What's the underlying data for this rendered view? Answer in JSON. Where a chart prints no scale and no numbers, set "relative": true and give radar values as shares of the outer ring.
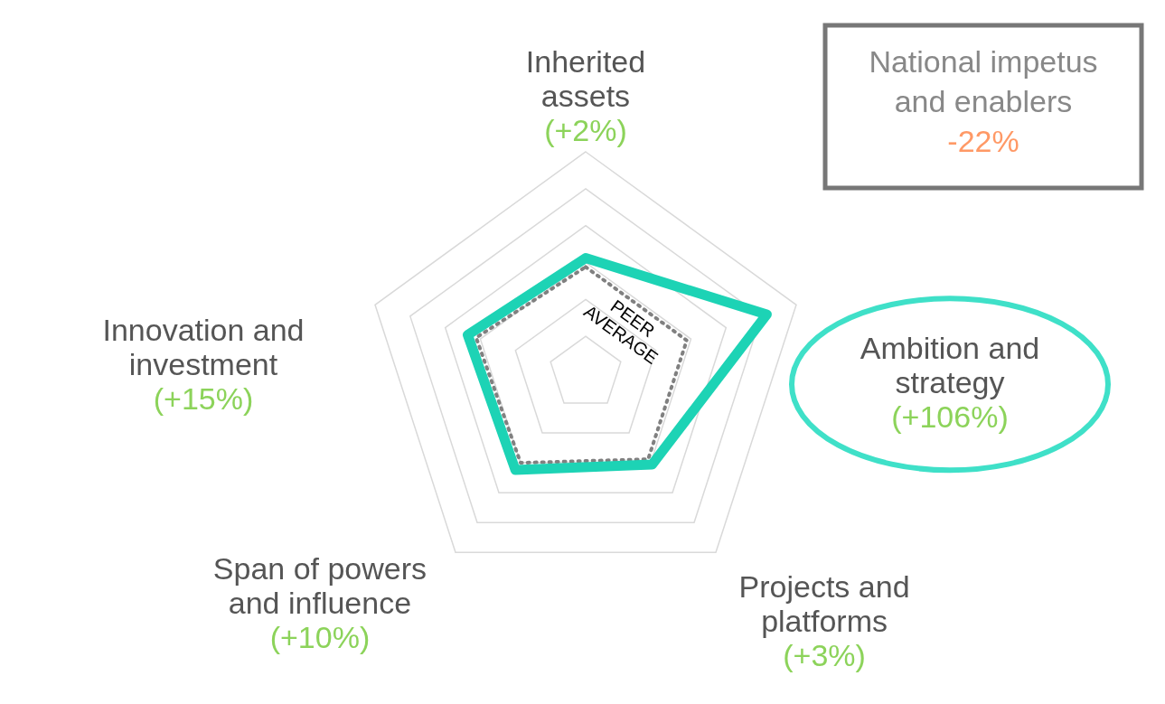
{
  "chart_data": {
    "type": "radar",
    "relative": true,
    "grid": true,
    "categories": [
      "Inherited assets",
      "Ambition and strategy",
      "Projects and platforms",
      "Span of powers and influence",
      "Innovation and investment"
    ],
    "series": [
      {
        "color": "#1dd3b5",
        "values": [
          0.52,
          0.86,
          0.51,
          0.54,
          0.56
        ],
        "line_style": "solid"
      },
      {
        "name": "PEER AVERAGE",
        "color": "#808080",
        "values": [
          0.48,
          0.48,
          0.48,
          0.5,
          0.52
        ],
        "line_style": "dotted"
      }
    ],
    "annotations": [
      "(+2%)",
      "(+106%)",
      "(+3%)",
      "(+10%)",
      "(+15%)",
      "National impetus and enablers",
      "-22%"
    ]
  }
}
